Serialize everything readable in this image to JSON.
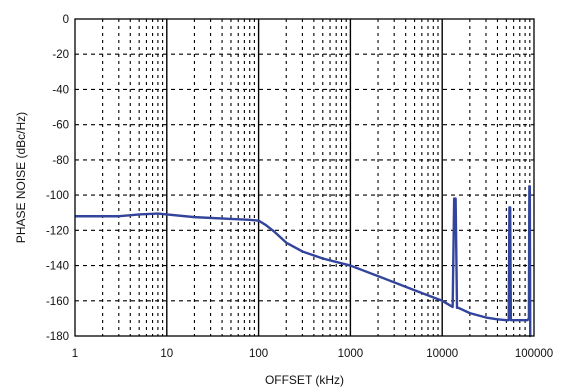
{
  "chart_data": {
    "type": "line",
    "title": "",
    "xlabel": "OFFSET (kHz)",
    "ylabel": "PHASE NOISE (dBc/Hz)",
    "x_scale": "log",
    "xlim": [
      1,
      100000
    ],
    "ylim": [
      -180,
      0
    ],
    "x_ticks": [
      "1",
      "10",
      "100",
      "1000",
      "10000",
      "100000"
    ],
    "y_ticks": [
      "0",
      "-20",
      "-40",
      "-60",
      "-80",
      "-100",
      "-120",
      "-140",
      "-160",
      "-180"
    ],
    "grid": true,
    "legend": "none",
    "colors": {
      "series": "#33449c",
      "major_grid": "#000000",
      "minor_grid": "#000000"
    },
    "series": [
      {
        "x": [
          1,
          2,
          3,
          5,
          8,
          10,
          20,
          50,
          80,
          100,
          120,
          150,
          200,
          300,
          500,
          1000,
          2000,
          5000,
          10000,
          13000,
          13500,
          14000,
          14500,
          15000,
          20000,
          30000,
          40000,
          50000,
          53000,
          54000,
          55000,
          56000,
          57000,
          60000,
          70000,
          80000,
          85000,
          88000,
          89000,
          90000,
          91000,
          92000
        ],
        "y": [
          -112,
          -112,
          -112,
          -111,
          -110.5,
          -111,
          -112.5,
          -113.5,
          -114,
          -114.5,
          -117,
          -121,
          -127,
          -132,
          -136,
          -140,
          -146,
          -154,
          -160,
          -163.5,
          -102,
          -102,
          -164,
          -164,
          -167,
          -169.5,
          -170.5,
          -171,
          -171,
          -107,
          -107,
          -171,
          -171,
          -171,
          -171,
          -171,
          -171,
          -170,
          -95,
          -95,
          -180,
          -180
        ]
      }
    ]
  }
}
